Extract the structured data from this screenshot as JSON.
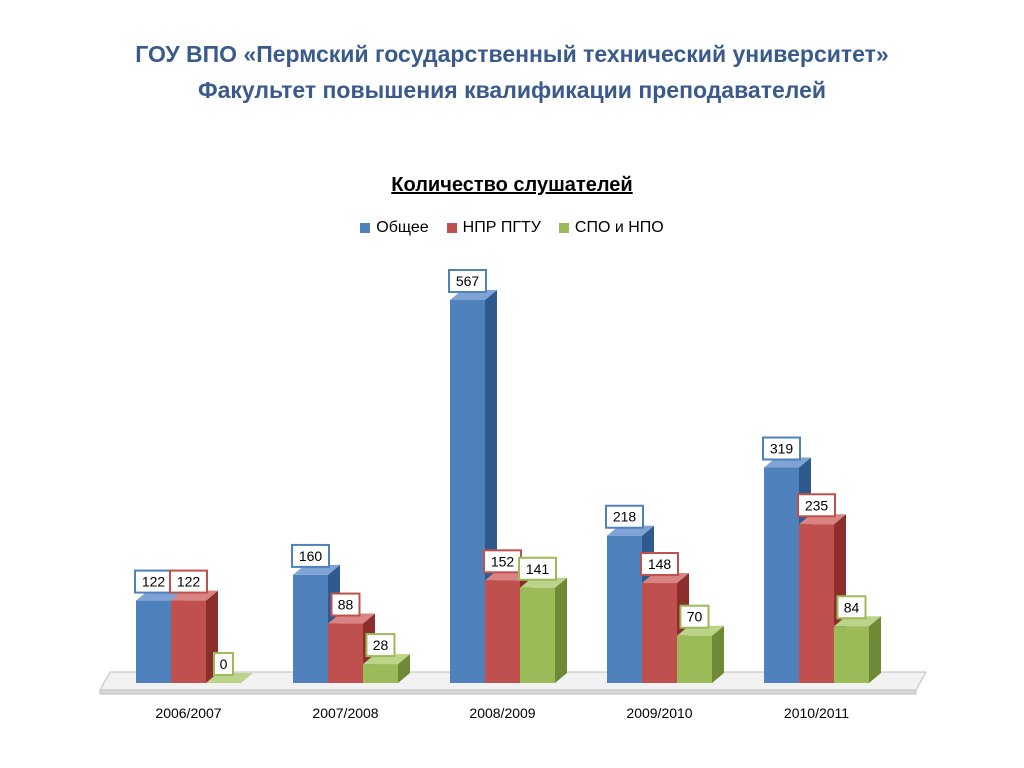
{
  "header": {
    "line1": "ГОУ ВПО «Пермский государственный технический университет»",
    "line2": "Факультет повышения квалификации преподавателей"
  },
  "chart_data": {
    "type": "bar",
    "title": "Количество слушателей",
    "categories": [
      "2006/2007",
      "2007/2008",
      "2008/2009",
      "2009/2010",
      "2010/2011"
    ],
    "series": [
      {
        "name": "Общее",
        "values": [
          122,
          160,
          567,
          218,
          319
        ],
        "color": "#4f81bd",
        "side_color": "#2e5a8e",
        "top_color": "#7ea3d4"
      },
      {
        "name": "НПР ПГТУ",
        "values": [
          122,
          88,
          152,
          148,
          235
        ],
        "color": "#c0504d",
        "side_color": "#8b2e2c",
        "top_color": "#d98482"
      },
      {
        "name": "СПО и НПО",
        "values": [
          0,
          28,
          141,
          70,
          84
        ],
        "color": "#9bbb59",
        "side_color": "#6e8a37",
        "top_color": "#bcd48a"
      }
    ],
    "ylim": [
      0,
      600
    ],
    "grid": false,
    "legend_position": "top-center",
    "data_labels": true
  }
}
